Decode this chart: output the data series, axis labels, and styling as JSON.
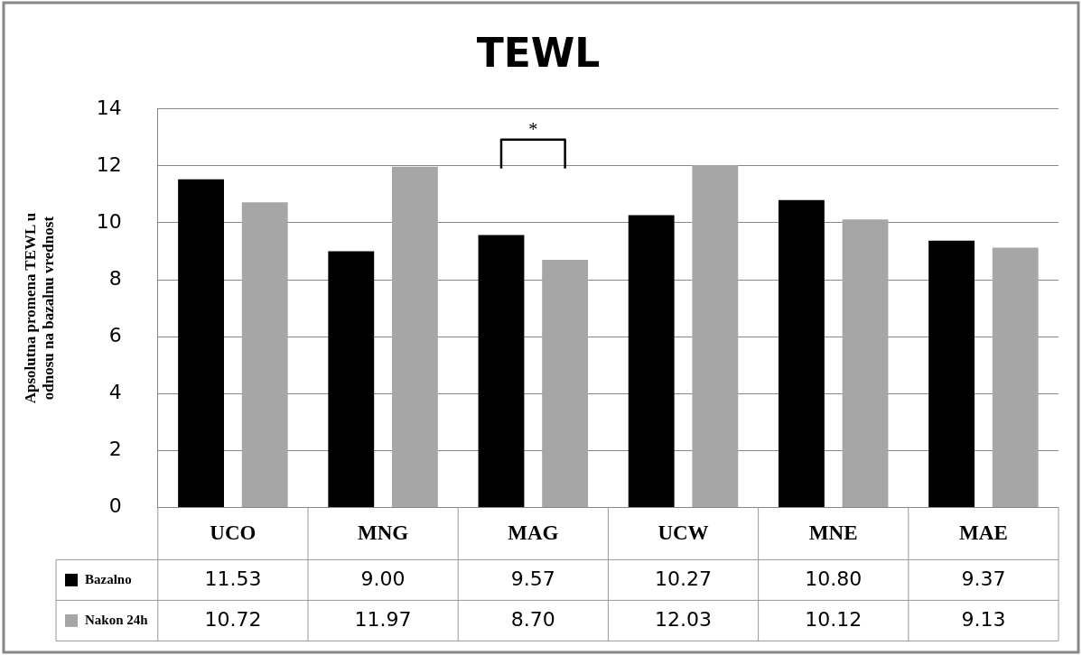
{
  "chart_data": {
    "type": "bar",
    "title": "TEWL",
    "ylabel": "Apsolutna promena TEWL u odnosu na bazalnu vrednost",
    "categories": [
      "UCO",
      "MNG",
      "MAG",
      "UCW",
      "MNE",
      "MAE"
    ],
    "series": [
      {
        "name": "Bazalno",
        "color": "#000000",
        "values": [
          11.53,
          9.0,
          9.57,
          10.27,
          10.8,
          9.37
        ],
        "value_labels": [
          "11.53",
          "9.00",
          "9.57",
          "10.27",
          "10.80",
          "9.37"
        ]
      },
      {
        "name": "Nakon 24h",
        "color": "#a6a6a6",
        "values": [
          10.72,
          11.97,
          8.7,
          12.03,
          10.12,
          9.13
        ],
        "value_labels": [
          "10.72",
          "11.97",
          "8.70",
          "12.03",
          "10.12",
          "9.13"
        ]
      }
    ],
    "ylim": [
      0,
      14
    ],
    "yticks": [
      0,
      2,
      4,
      6,
      8,
      10,
      12,
      14
    ],
    "grid": "y",
    "legend": "bottom",
    "annotations": [
      "*"
    ]
  }
}
